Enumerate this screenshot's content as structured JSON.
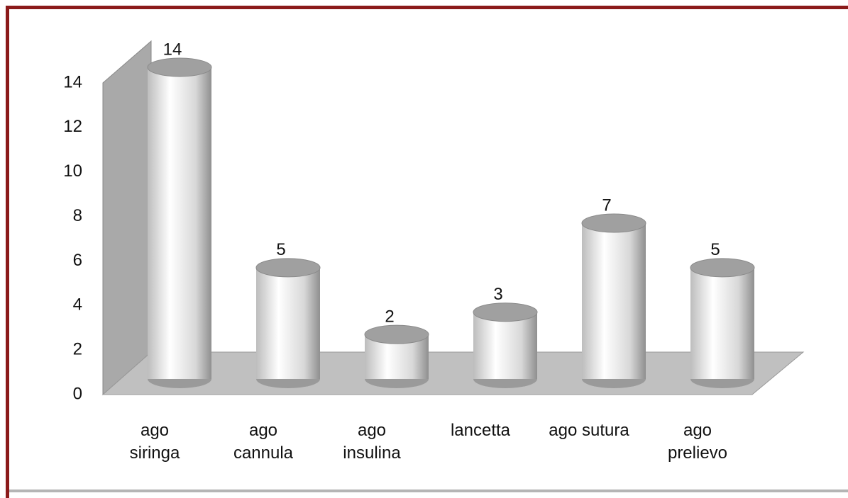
{
  "chart_data": {
    "type": "bar",
    "categories": [
      "ago\nsiringa",
      "ago\ncannula",
      "ago\ninsulina",
      "lancetta",
      "ago sutura",
      "ago\nprelievo"
    ],
    "values": [
      14,
      5,
      2,
      3,
      7,
      5
    ],
    "color": "#e6e6e6",
    "ylim": [
      0,
      14
    ],
    "yticks": [
      0,
      2,
      4,
      6,
      8,
      10,
      12,
      14
    ],
    "grid": false
  }
}
